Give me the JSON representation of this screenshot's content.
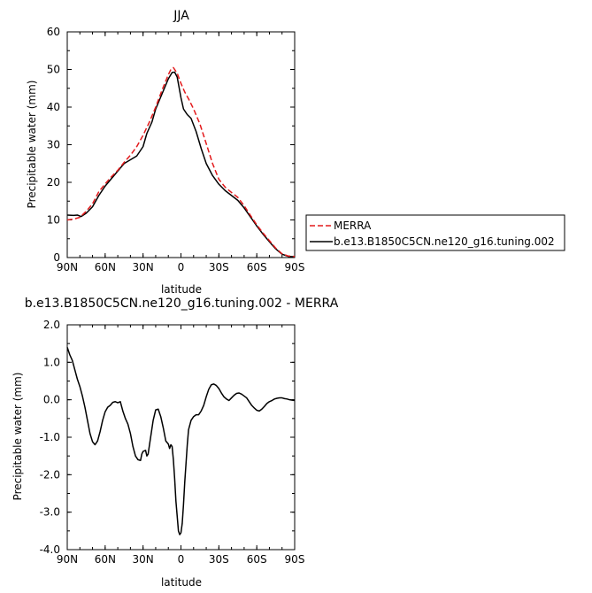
{
  "chart_data": [
    {
      "type": "line",
      "title": "JJA",
      "xlabel": "latitude",
      "ylabel": "Precipitable water (mm)",
      "x_ticks": [
        "90N",
        "60N",
        "30N",
        "0",
        "30S",
        "60S",
        "90S"
      ],
      "y_ticks": [
        "0",
        "10",
        "20",
        "30",
        "40",
        "50",
        "60"
      ],
      "xlim": [
        90,
        -90
      ],
      "ylim": [
        0,
        60
      ],
      "legend_position": "right",
      "series": [
        {
          "name": "MERRA",
          "color": "#e31a1c",
          "dash": "dashed",
          "points": [
            [
              90,
              10.0
            ],
            [
              85,
              10.2
            ],
            [
              80,
              10.7
            ],
            [
              75,
              12.3
            ],
            [
              70,
              14.3
            ],
            [
              65,
              17.5
            ],
            [
              60,
              19.6
            ],
            [
              55,
              21.5
            ],
            [
              50,
              23.2
            ],
            [
              45,
              25.3
            ],
            [
              40,
              27.2
            ],
            [
              35,
              29.5
            ],
            [
              30,
              32.5
            ],
            [
              25,
              36.0
            ],
            [
              20,
              40.0
            ],
            [
              15,
              44.5
            ],
            [
              10,
              48.6
            ],
            [
              8,
              50.0
            ],
            [
              6,
              50.5
            ],
            [
              3,
              49.0
            ],
            [
              0,
              46.3
            ],
            [
              -3,
              44.0
            ],
            [
              -6,
              42.2
            ],
            [
              -10,
              39.5
            ],
            [
              -15,
              35.5
            ],
            [
              -20,
              30.3
            ],
            [
              -25,
              25.0
            ],
            [
              -30,
              20.8
            ],
            [
              -35,
              18.7
            ],
            [
              -40,
              17.3
            ],
            [
              -45,
              16.0
            ],
            [
              -50,
              13.8
            ],
            [
              -55,
              11.2
            ],
            [
              -60,
              8.7
            ],
            [
              -65,
              6.5
            ],
            [
              -70,
              4.5
            ],
            [
              -75,
              2.5
            ],
            [
              -80,
              1.0
            ],
            [
              -85,
              0.4
            ],
            [
              -90,
              0.3
            ]
          ]
        },
        {
          "name": "b.e13.B1850C5CN.ne120_g16.tuning.002",
          "color": "#000000",
          "dash": "solid",
          "points": [
            [
              90,
              11.3
            ],
            [
              85,
              11.2
            ],
            [
              82,
              11.3
            ],
            [
              79,
              10.9
            ],
            [
              75,
              11.8
            ],
            [
              70,
              13.5
            ],
            [
              65,
              16.5
            ],
            [
              60,
              19.0
            ],
            [
              55,
              21.0
            ],
            [
              50,
              23.0
            ],
            [
              45,
              25.0
            ],
            [
              40,
              26.0
            ],
            [
              35,
              27.0
            ],
            [
              30,
              29.5
            ],
            [
              27,
              33.0
            ],
            [
              23,
              36.0
            ],
            [
              20,
              39.5
            ],
            [
              15,
              43.5
            ],
            [
              10,
              47.5
            ],
            [
              7,
              49.2
            ],
            [
              5,
              49.3
            ],
            [
              3,
              48.0
            ],
            [
              0,
              42.5
            ],
            [
              -2,
              39.5
            ],
            [
              -5,
              38.0
            ],
            [
              -8,
              37.0
            ],
            [
              -12,
              33.5
            ],
            [
              -16,
              29.0
            ],
            [
              -20,
              25.0
            ],
            [
              -25,
              21.8
            ],
            [
              -30,
              19.5
            ],
            [
              -35,
              17.8
            ],
            [
              -40,
              16.5
            ],
            [
              -45,
              15.2
            ],
            [
              -50,
              13.2
            ],
            [
              -55,
              10.8
            ],
            [
              -60,
              8.4
            ],
            [
              -65,
              6.2
            ],
            [
              -70,
              4.2
            ],
            [
              -75,
              2.3
            ],
            [
              -80,
              0.9
            ],
            [
              -85,
              0.3
            ],
            [
              -90,
              0.2
            ]
          ]
        }
      ]
    },
    {
      "type": "line",
      "title": "b.e13.B1850C5CN.ne120_g16.tuning.002 - MERRA",
      "xlabel": "latitude",
      "ylabel": "Precipitable water (mm)",
      "x_ticks": [
        "90N",
        "60N",
        "30N",
        "0",
        "30S",
        "60S",
        "90S"
      ],
      "y_ticks": [
        "-4.0",
        "-3.0",
        "-2.0",
        "-1.0",
        "0.0",
        "1.0",
        "2.0"
      ],
      "xlim": [
        90,
        -90
      ],
      "ylim": [
        -4,
        2
      ],
      "series": [
        {
          "name": "",
          "color": "#000000",
          "dash": "solid",
          "points": [
            [
              90,
              1.4
            ],
            [
              88,
              1.2
            ],
            [
              86,
              1.05
            ],
            [
              84,
              0.8
            ],
            [
              82,
              0.55
            ],
            [
              80,
              0.35
            ],
            [
              78,
              0.1
            ],
            [
              76,
              -0.2
            ],
            [
              74,
              -0.55
            ],
            [
              72,
              -0.9
            ],
            [
              70,
              -1.12
            ],
            [
              68,
              -1.2
            ],
            [
              66,
              -1.1
            ],
            [
              64,
              -0.85
            ],
            [
              62,
              -0.55
            ],
            [
              60,
              -0.32
            ],
            [
              58,
              -0.2
            ],
            [
              56,
              -0.15
            ],
            [
              54,
              -0.07
            ],
            [
              52,
              -0.05
            ],
            [
              50,
              -0.08
            ],
            [
              48,
              -0.05
            ],
            [
              46,
              -0.3
            ],
            [
              44,
              -0.5
            ],
            [
              42,
              -0.65
            ],
            [
              40,
              -0.9
            ],
            [
              38,
              -1.25
            ],
            [
              36,
              -1.5
            ],
            [
              34,
              -1.6
            ],
            [
              32,
              -1.62
            ],
            [
              31,
              -1.45
            ],
            [
              30,
              -1.38
            ],
            [
              28,
              -1.35
            ],
            [
              27,
              -1.5
            ],
            [
              26,
              -1.45
            ],
            [
              24,
              -1.0
            ],
            [
              22,
              -0.55
            ],
            [
              20,
              -0.27
            ],
            [
              18,
              -0.25
            ],
            [
              16,
              -0.45
            ],
            [
              14,
              -0.75
            ],
            [
              12,
              -1.1
            ],
            [
              10,
              -1.18
            ],
            [
              9,
              -1.3
            ],
            [
              8,
              -1.2
            ],
            [
              7,
              -1.25
            ],
            [
              6,
              -1.6
            ],
            [
              5,
              -2.1
            ],
            [
              4,
              -2.7
            ],
            [
              3,
              -3.1
            ],
            [
              2,
              -3.5
            ],
            [
              1,
              -3.6
            ],
            [
              0,
              -3.55
            ],
            [
              -1,
              -3.3
            ],
            [
              -2,
              -2.8
            ],
            [
              -3,
              -2.2
            ],
            [
              -4,
              -1.7
            ],
            [
              -5,
              -1.2
            ],
            [
              -6,
              -0.8
            ],
            [
              -8,
              -0.55
            ],
            [
              -10,
              -0.45
            ],
            [
              -12,
              -0.4
            ],
            [
              -14,
              -0.4
            ],
            [
              -16,
              -0.3
            ],
            [
              -18,
              -0.15
            ],
            [
              -20,
              0.08
            ],
            [
              -22,
              0.28
            ],
            [
              -24,
              0.4
            ],
            [
              -26,
              0.42
            ],
            [
              -28,
              0.38
            ],
            [
              -30,
              0.3
            ],
            [
              -32,
              0.18
            ],
            [
              -34,
              0.08
            ],
            [
              -36,
              0.02
            ],
            [
              -38,
              -0.02
            ],
            [
              -40,
              0.05
            ],
            [
              -42,
              0.12
            ],
            [
              -44,
              0.17
            ],
            [
              -46,
              0.18
            ],
            [
              -48,
              0.15
            ],
            [
              -50,
              0.1
            ],
            [
              -52,
              0.05
            ],
            [
              -54,
              -0.05
            ],
            [
              -56,
              -0.15
            ],
            [
              -58,
              -0.22
            ],
            [
              -60,
              -0.28
            ],
            [
              -62,
              -0.3
            ],
            [
              -64,
              -0.25
            ],
            [
              -66,
              -0.18
            ],
            [
              -68,
              -0.1
            ],
            [
              -70,
              -0.05
            ],
            [
              -72,
              -0.02
            ],
            [
              -74,
              0.02
            ],
            [
              -76,
              0.04
            ],
            [
              -78,
              0.05
            ],
            [
              -80,
              0.05
            ],
            [
              -82,
              0.03
            ],
            [
              -84,
              0.02
            ],
            [
              -86,
              0.0
            ],
            [
              -88,
              -0.01
            ],
            [
              -90,
              -0.02
            ]
          ]
        }
      ]
    }
  ]
}
